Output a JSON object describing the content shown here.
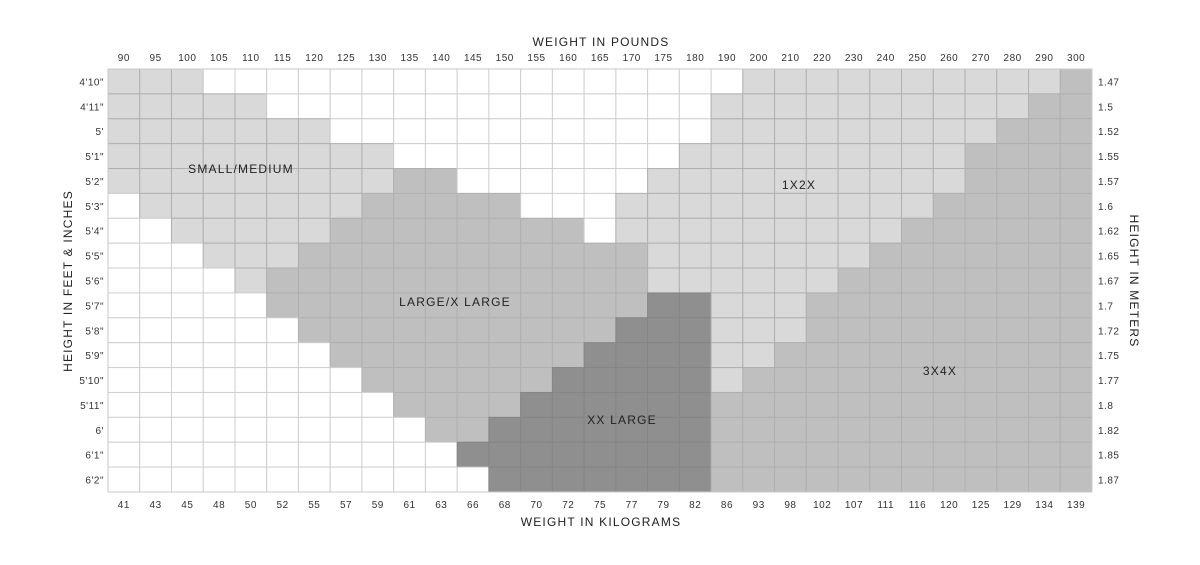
{
  "chart_data": {
    "type": "heatmap",
    "xlabel_top": "WEIGHT IN POUNDS",
    "xlabel_bottom": "WEIGHT IN KILOGRAMS",
    "ylabel_left": "HEIGHT IN FEET & INCHES",
    "ylabel_right": "HEIGHT IN METERS",
    "pounds": [
      "90",
      "95",
      "100",
      "105",
      "110",
      "115",
      "120",
      "125",
      "130",
      "135",
      "140",
      "145",
      "150",
      "155",
      "160",
      "165",
      "170",
      "175",
      "180",
      "190",
      "200",
      "210",
      "220",
      "230",
      "240",
      "250",
      "260",
      "270",
      "280",
      "290",
      "300"
    ],
    "kilograms": [
      "41",
      "43",
      "45",
      "48",
      "50",
      "52",
      "55",
      "57",
      "59",
      "61",
      "63",
      "66",
      "68",
      "70",
      "72",
      "75",
      "77",
      "79",
      "82",
      "86",
      "93",
      "98",
      "102",
      "107",
      "111",
      "116",
      "120",
      "125",
      "129",
      "134",
      "139"
    ],
    "heights": [
      "4'10\"",
      "4'11\"",
      "5'",
      "5'1\"",
      "5'2\"",
      "5'3\"",
      "5'4\"",
      "5'5\"",
      "5'6\"",
      "5'7\"",
      "5'8\"",
      "5'9\"",
      "5'10\"",
      "5'11\"",
      "6'",
      "6'1\"",
      "6'2\""
    ],
    "meters": [
      "1.47",
      "1.5",
      "1.52",
      "1.55",
      "1.57",
      "1.6",
      "1.62",
      "1.65",
      "1.67",
      "1.7",
      "1.72",
      "1.75",
      "1.77",
      "1.8",
      "1.82",
      "1.85",
      "1.87"
    ],
    "regions": {
      "small_medium": "SMALL/MEDIUM",
      "one_two_x": "1X2X",
      "large_xlarge": "LARGE/X LARGE",
      "xx_large": "XX LARGE",
      "three_four_x": "3X4X"
    },
    "cell_code_colors": {
      "0": "#ffffff",
      "1": "#d9d9d9",
      "2": "#bfbfbf",
      "3": "#8f8f8f"
    },
    "cell_code_meaning": {
      "0": "none",
      "1": "SMALL/MEDIUM or 1X2X",
      "2": "LARGE/X LARGE or 3X4X",
      "3": "XX LARGE"
    },
    "cells": [
      "1110000000000000000011111111112",
      "1111100000000000000111111111122",
      "1111111000000000000111111111222",
      "1111111110000000001111111112222",
      "1111111112200000011111111112222",
      "0111111122222000111111111122222",
      "0011111222222220111111111222222",
      "0001112222222222211111112222222",
      "0000122222222222211111122222222",
      "0000022222222222233111222222222",
      "0000002222222222333111222222222",
      "0000000222222223333112222222222",
      "0000000022222233333122222222222",
      "0000000002222333333222222222222",
      "0000000000223333333222222222222",
      "0000000000033333333222222222222",
      "0000000000003333333222222222222"
    ],
    "grid": true
  }
}
